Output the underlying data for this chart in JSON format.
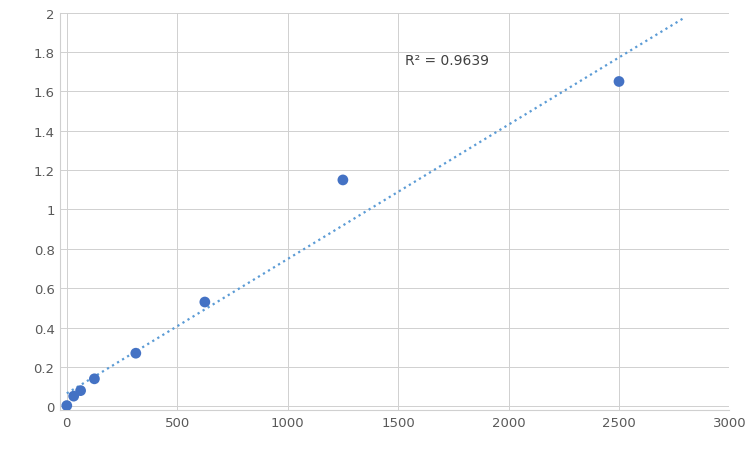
{
  "x_data": [
    0,
    31.25,
    62.5,
    125,
    312.5,
    625,
    1250,
    2500
  ],
  "y_data": [
    0.004,
    0.052,
    0.08,
    0.14,
    0.27,
    0.53,
    1.15,
    1.65
  ],
  "trendline_x_start": 0,
  "trendline_x_end": 2800,
  "r_squared": "R² = 0.9639",
  "r2_x": 1530,
  "r2_y": 1.76,
  "xlim": [
    -30,
    3000
  ],
  "ylim": [
    -0.02,
    2.0
  ],
  "xticks": [
    0,
    500,
    1000,
    1500,
    2000,
    2500,
    3000
  ],
  "yticks": [
    0,
    0.2,
    0.4,
    0.6,
    0.8,
    1.0,
    1.2,
    1.4,
    1.6,
    1.8,
    2.0
  ],
  "dot_color": "#4472C4",
  "line_color": "#5B9BD5",
  "dot_size": 60,
  "background_color": "#ffffff",
  "grid_color": "#d0d0d0",
  "tick_label_color": "#595959",
  "tick_label_size": 9.5
}
